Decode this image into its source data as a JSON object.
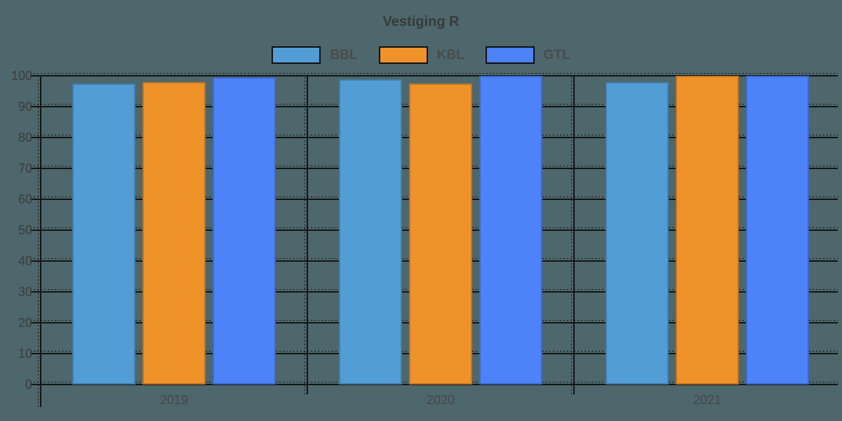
{
  "title": "Vestiging R",
  "background_color": "#4D676C",
  "chart_data": {
    "type": "bar",
    "title": "Vestiging R",
    "categories": [
      "2019",
      "2020",
      "2021"
    ],
    "series": [
      {
        "name": "BBL",
        "color": "#529DD6",
        "values": [
          97.5,
          98.9,
          98.0
        ]
      },
      {
        "name": "KBL",
        "color": "#F0922A",
        "values": [
          98.0,
          97.6,
          100
        ]
      },
      {
        "name": "GTL",
        "color": "#4D82F8",
        "values": [
          99.5,
          100,
          100
        ]
      }
    ],
    "xlabel": "",
    "ylabel": "",
    "ylim": [
      0,
      100
    ],
    "yticks": [
      0,
      10,
      20,
      30,
      40,
      50,
      60,
      70,
      80,
      90,
      100
    ],
    "grid": true,
    "gridline_color": "#151515",
    "legend_position": "top"
  }
}
